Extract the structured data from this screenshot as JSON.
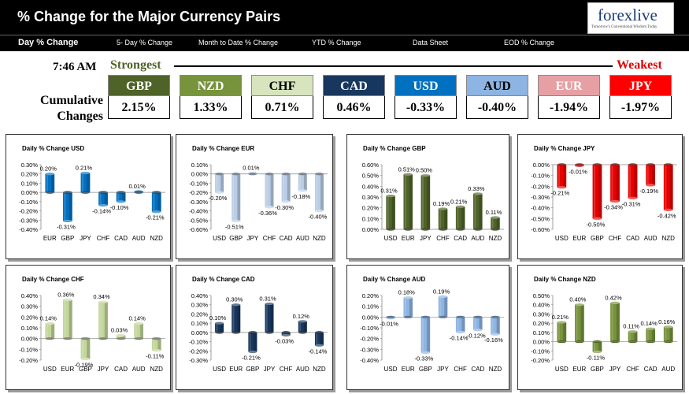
{
  "header": {
    "title": "% Change for the Major Currency Pairs"
  },
  "logo": {
    "text": "forexlive",
    "tagline": "Tomorrow's Conventional Wisdom Today"
  },
  "tabs": [
    {
      "label": "Day % Change"
    },
    {
      "label": "5- Day % Change"
    },
    {
      "label": "Month to Date % Change"
    },
    {
      "label": "YTD % Change"
    },
    {
      "label": "Data Sheet"
    },
    {
      "label": "EOD % Change"
    }
  ],
  "time": "7:46 AM",
  "strongest_label": "Strongest",
  "weakest_label": "Weakest",
  "cumulative_label_1": "Cumulative",
  "cumulative_label_2": "Changes",
  "currencies": [
    {
      "code": "GBP",
      "value": "2.15%",
      "bg": "#4f6228",
      "fg": "#ffffff"
    },
    {
      "code": "NZD",
      "value": "1.33%",
      "bg": "#77933c",
      "fg": "#ffffff"
    },
    {
      "code": "CHF",
      "value": "0.71%",
      "bg": "#d7e4bd",
      "fg": "#000000"
    },
    {
      "code": "CAD",
      "value": "0.46%",
      "bg": "#17375e",
      "fg": "#ffffff"
    },
    {
      "code": "USD",
      "value": "-0.33%",
      "bg": "#0070c0",
      "fg": "#ffffff"
    },
    {
      "code": "AUD",
      "value": "-0.40%",
      "bg": "#8db4e2",
      "fg": "#000000"
    },
    {
      "code": "EUR",
      "value": "-1.94%",
      "bg": "#e6a0a4",
      "fg": "#ffffff"
    },
    {
      "code": "JPY",
      "value": "-1.97%",
      "bg": "#ff0000",
      "fg": "#ffffff"
    }
  ],
  "chart_data": [
    {
      "type": "bar",
      "title": "Daily % Change USD",
      "categories": [
        "EUR",
        "GBP",
        "JPY",
        "CHF",
        "CAD",
        "AUD",
        "NZD"
      ],
      "values": [
        0.2,
        -0.31,
        0.21,
        -0.14,
        -0.1,
        0.01,
        -0.21
      ],
      "labels": [
        "0.20%",
        "-0.31%",
        "0.21%",
        "-0.14%",
        "-0.10%",
        "0.01%",
        "-0.21%"
      ],
      "ylim": [
        -0.4,
        0.3
      ],
      "ytick_step": 0.1,
      "ytick_labels": [
        "0.30%",
        "0.20%",
        "0.10%",
        "0.00%",
        "-0.10%",
        "-0.20%",
        "-0.30%",
        "-0.40%"
      ],
      "color": "#0070c0",
      "grid": false
    },
    {
      "type": "bar",
      "title": "Daily % Change EUR",
      "categories": [
        "USD",
        "GBP",
        "JPY",
        "CHF",
        "CAD",
        "AUD",
        "NZD"
      ],
      "values": [
        -0.2,
        -0.51,
        0.01,
        -0.36,
        -0.3,
        -0.18,
        -0.4
      ],
      "labels": [
        "-0.20%",
        "-0.51%",
        "0.01%",
        "-0.36%",
        "-0.30%",
        "-0.18%",
        "-0.40%"
      ],
      "ylim": [
        -0.6,
        0.1
      ],
      "ytick_step": 0.1,
      "ytick_labels": [
        "0.10%",
        "0.00%",
        "-0.10%",
        "-0.20%",
        "-0.30%",
        "-0.40%",
        "-0.50%",
        "-0.60%"
      ],
      "color": "#b9cde5",
      "grid": false
    },
    {
      "type": "bar",
      "title": "Daily % Change GBP",
      "categories": [
        "USD",
        "EUR",
        "JPY",
        "CHF",
        "CAD",
        "AUD",
        "NZD"
      ],
      "values": [
        0.31,
        0.51,
        0.5,
        0.19,
        0.21,
        0.33,
        0.11
      ],
      "labels": [
        "0.31%",
        "0.51%",
        "0.50%",
        "0.19%",
        "0.21%",
        "0.33%",
        "0.11%"
      ],
      "ylim": [
        0.0,
        0.6
      ],
      "ytick_step": 0.1,
      "ytick_labels": [
        "0.60%",
        "0.50%",
        "0.40%",
        "0.30%",
        "0.20%",
        "0.10%",
        "0.00%"
      ],
      "color": "#4f6228",
      "grid": false
    },
    {
      "type": "bar",
      "title": "Daily % Change JPY",
      "categories": [
        "USD",
        "EUR",
        "GBP",
        "CHF",
        "CAD",
        "AUD",
        "NZD"
      ],
      "values": [
        -0.21,
        -0.01,
        -0.5,
        -0.34,
        -0.31,
        -0.19,
        -0.42
      ],
      "labels": [
        "-0.21%",
        "-0.01%",
        "-0.50%",
        "-0.34%",
        "-0.31%",
        "-0.19%",
        "-0.42%"
      ],
      "ylim": [
        -0.6,
        0.0
      ],
      "ytick_step": 0.1,
      "ytick_labels": [
        "0.00%",
        "-0.10%",
        "-0.20%",
        "-0.30%",
        "-0.40%",
        "-0.50%",
        "-0.60%"
      ],
      "color": "#e80000",
      "grid": false
    },
    {
      "type": "bar",
      "title": "Daily % Change CHF",
      "categories": [
        "USD",
        "EUR",
        "GBP",
        "JPY",
        "CAD",
        "AUD",
        "NZD"
      ],
      "values": [
        0.14,
        0.36,
        -0.19,
        0.34,
        0.03,
        0.14,
        -0.11
      ],
      "labels": [
        "0.14%",
        "0.36%",
        "-0.19%",
        "0.34%",
        "0.03%",
        "0.14%",
        "-0.11%"
      ],
      "ylim": [
        -0.2,
        0.4
      ],
      "ytick_step": 0.1,
      "ytick_labels": [
        "0.40%",
        "0.30%",
        "0.20%",
        "0.10%",
        "0.00%",
        "-0.10%",
        "-0.20%"
      ],
      "color": "#c3d69b",
      "grid": false
    },
    {
      "type": "bar",
      "title": "Daily % Change CAD",
      "categories": [
        "USD",
        "EUR",
        "GBP",
        "JPY",
        "CHF",
        "AUD",
        "NZD"
      ],
      "values": [
        0.1,
        0.3,
        -0.21,
        0.31,
        -0.03,
        0.12,
        -0.14
      ],
      "labels": [
        "0.10%",
        "0.30%",
        "-0.21%",
        "0.31%",
        "-0.03%",
        "0.12%",
        "-0.14%"
      ],
      "ylim": [
        -0.3,
        0.4
      ],
      "ytick_step": 0.1,
      "ytick_labels": [
        "0.40%",
        "0.30%",
        "0.20%",
        "0.10%",
        "0.00%",
        "-0.10%",
        "-0.20%",
        "-0.30%"
      ],
      "color": "#17375e",
      "grid": false
    },
    {
      "type": "bar",
      "title": "Daily % Change AUD",
      "categories": [
        "USD",
        "EUR",
        "GBP",
        "JPY",
        "CHF",
        "CAD",
        "NZD"
      ],
      "values": [
        -0.01,
        0.18,
        -0.33,
        0.19,
        -0.14,
        -0.12,
        -0.16
      ],
      "labels": [
        "-0.01%",
        "0.18%",
        "-0.33%",
        "0.19%",
        "-0.14%",
        "-0.12%",
        "-0.16%"
      ],
      "ylim": [
        -0.4,
        0.2
      ],
      "ytick_step": 0.1,
      "ytick_labels": [
        "0.20%",
        "0.10%",
        "0.00%",
        "-0.10%",
        "-0.20%",
        "-0.30%",
        "-0.40%"
      ],
      "color": "#8eb4e3",
      "grid": false
    },
    {
      "type": "bar",
      "title": "Daily % Change NZD",
      "categories": [
        "USD",
        "EUR",
        "GBP",
        "JPY",
        "CHF",
        "CAD",
        "AUD"
      ],
      "values": [
        0.21,
        0.4,
        -0.11,
        0.42,
        0.11,
        0.14,
        0.16
      ],
      "labels": [
        "0.21%",
        "0.40%",
        "-0.11%",
        "0.42%",
        "0.11%",
        "0.14%",
        "0.16%"
      ],
      "ylim": [
        -0.2,
        0.5
      ],
      "ytick_step": 0.1,
      "ytick_labels": [
        "0.50%",
        "0.40%",
        "0.30%",
        "0.20%",
        "0.10%",
        "0.00%",
        "-0.10%",
        "-0.20%"
      ],
      "color": "#77933c",
      "grid": false
    }
  ]
}
